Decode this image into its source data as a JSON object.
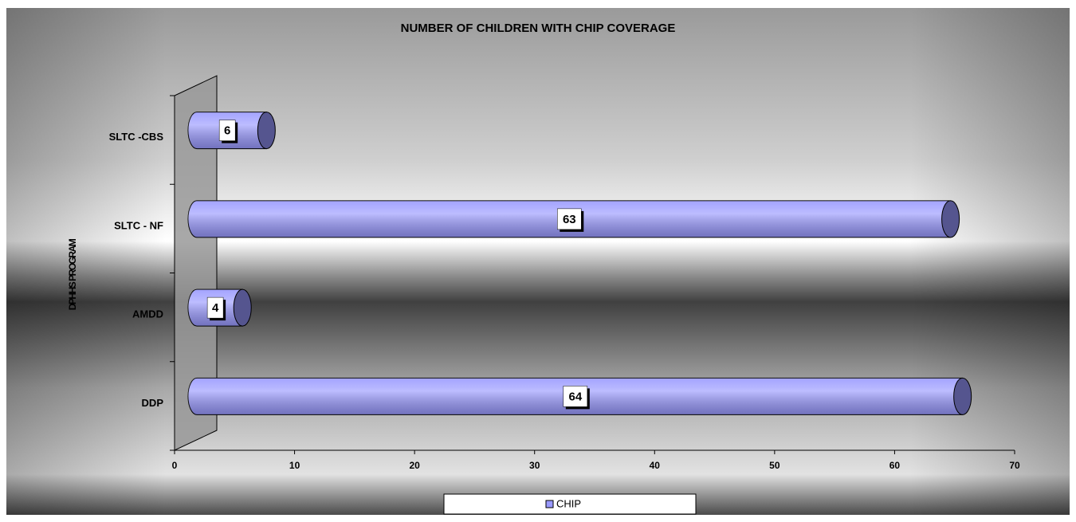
{
  "chart_data": {
    "type": "bar",
    "orientation": "horizontal",
    "title": "NUMBER OF CHILDREN WITH CHIP COVERAGE",
    "y_label": "DPHHS PROGRAM",
    "categories": [
      "DDP",
      "AMDD",
      "SLTC - NF",
      "SLTC -CBS"
    ],
    "series": [
      {
        "name": "CHIP",
        "color": "#9999ff",
        "values": [
          64,
          4,
          63,
          6
        ]
      }
    ],
    "xlim": [
      0,
      70
    ],
    "xticks": [
      0,
      10,
      20,
      30,
      40,
      50,
      60,
      70
    ],
    "legend": "bottom",
    "data_labels": true
  }
}
